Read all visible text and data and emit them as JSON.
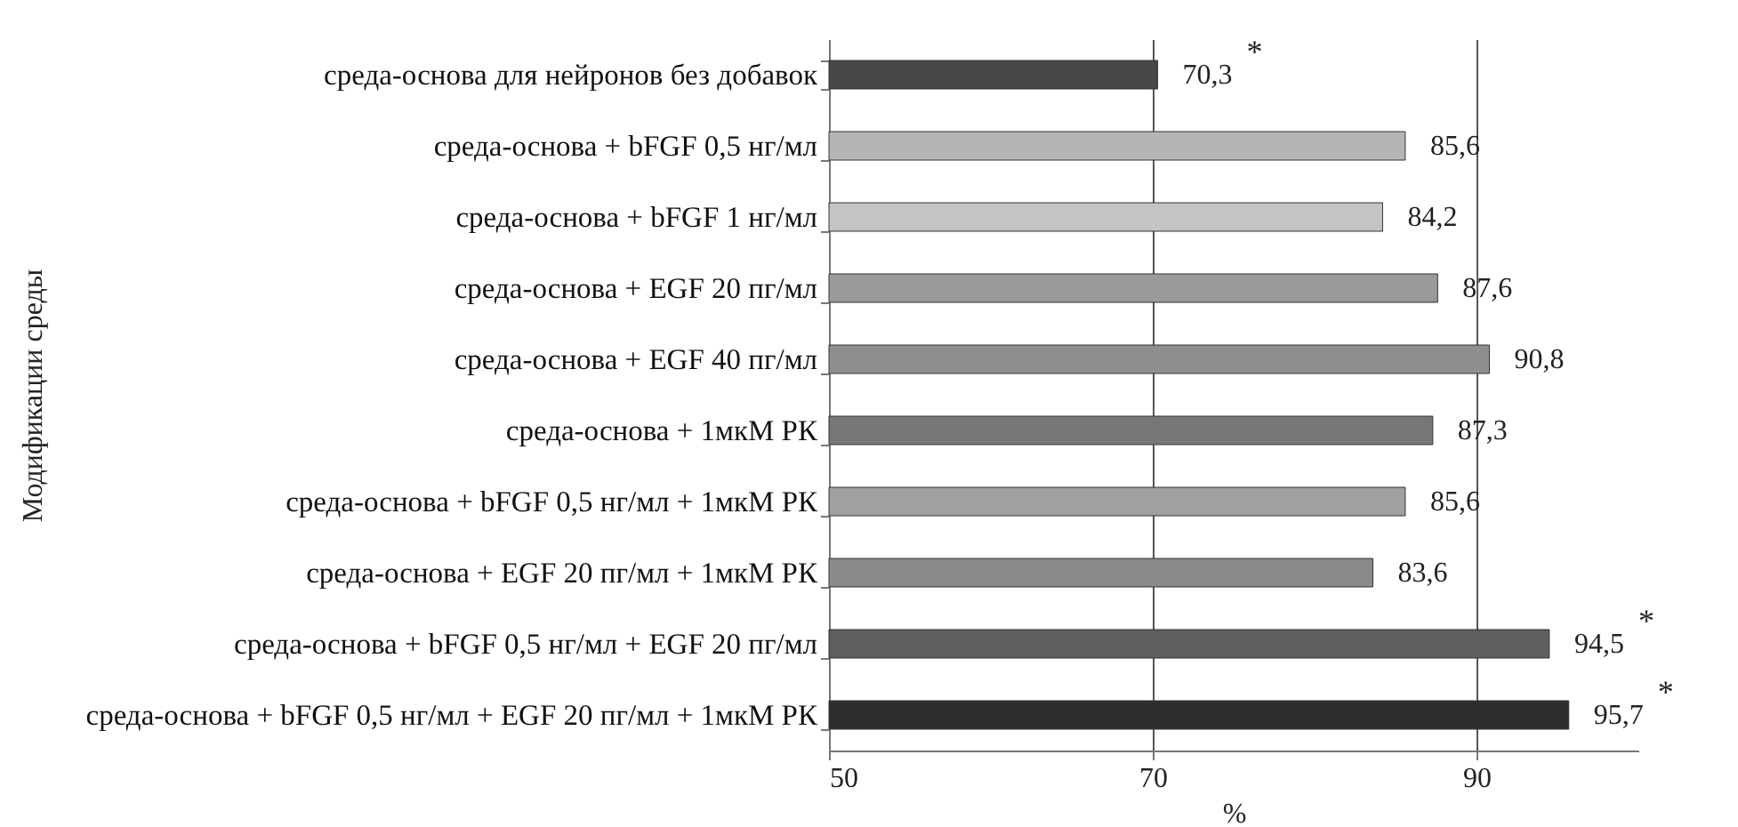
{
  "chart_data": {
    "type": "bar",
    "orientation": "horizontal",
    "xlabel": "%",
    "ylabel": "Модификации среды",
    "categories": [
      "среда-основа для нейронов  без добавок",
      "среда-основа + bFGF 0,5 нг/мл",
      "среда-основа + bFGF 1 нг/мл",
      "среда-основа + EGF 20 пг/мл",
      "среда-основа + EGF 40 пг/мл",
      "среда-основа + 1мкМ РК",
      "среда-основа + bFGF 0,5 нг/мл + 1мкМ РК",
      "среда-основа + EGF 20 пг/мл + 1мкМ РК",
      "среда-основа + bFGF 0,5 нг/мл + EGF 20 пг/мл",
      "среда-основа + bFGF 0,5 нг/мл + EGF 20 пг/мл + 1мкМ РК"
    ],
    "values": [
      70.3,
      85.6,
      84.2,
      87.6,
      90.8,
      87.3,
      85.6,
      83.6,
      94.5,
      95.7
    ],
    "value_labels": [
      "70,3",
      "85,6",
      "84,2",
      "87,6",
      "90,8",
      "87,3",
      "85,6",
      "83,6",
      "94,5",
      "95,7"
    ],
    "colors": [
      "#474747",
      "#b5b5b5",
      "#c4c4c4",
      "#9a9a9a",
      "#8f8f8f",
      "#777777",
      "#a0a0a0",
      "#8a8a8a",
      "#5e5e5e",
      "#2e2e2e"
    ],
    "xlim": [
      50,
      100
    ],
    "xticks": [
      50,
      70,
      90
    ],
    "grid": "x",
    "annotations": [
      {
        "text": "*",
        "x": 70.3,
        "y": "среда-основа для нейронов  без добавок"
      },
      {
        "text": "*",
        "x": 94.5,
        "y": "среда-основа + bFGF 0,5 нг/мл + EGF 20 пг/мл"
      },
      {
        "text": "*",
        "x": 95.7,
        "y": "среда-основа + bFGF 0,5 нг/мл + EGF 20 пг/мл + 1мкМ РК"
      }
    ]
  }
}
